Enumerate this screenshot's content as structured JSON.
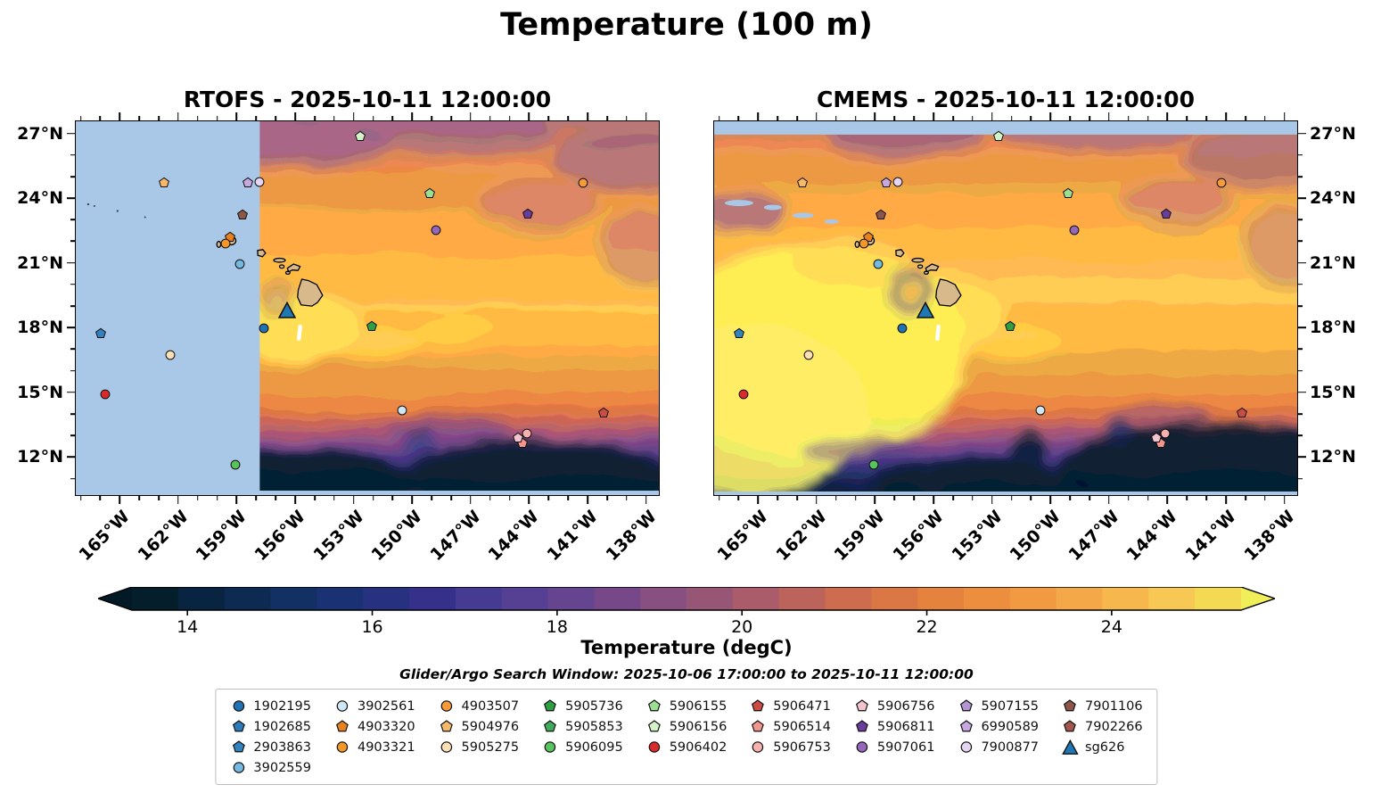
{
  "chart_data": {
    "type": "heatmap",
    "title": "Temperature (100 m)",
    "variable": "Temperature",
    "depth": "100 m",
    "units": "degC",
    "panels": [
      {
        "model": "RTOFS",
        "title": "RTOFS - 2025-10-11 12:00:00",
        "valid_time": "2025-10-11 12:00:00",
        "field_summary": "Warm orange/yellow (22-25 degC) band 15-25N, yellow maximum in lee of Hawaii, sharp transition to dark navy (<14 degC) south of ~14N; light-blue no-data mask west of ~158W",
        "no_data_color": "#a9c7e6"
      },
      {
        "model": "CMEMS",
        "title": "CMEMS - 2025-10-11 12:00:00",
        "valid_time": "2025-10-11 12:00:00",
        "field_summary": "Similar pattern with extensive yellow (>25 degC) pool west and southwest of Hawaii, eddy rings near the islands, dark (<14 degC) band with eddies south of 14N; light-blue no-data strip north of 27N",
        "no_data_color": "#a9c7e6"
      }
    ],
    "axes": {
      "lon_min": -167.3,
      "lon_max": -137.3,
      "lat_min": 10.2,
      "lat_max": 27.6,
      "x_tick_values": [
        -165,
        -162,
        -159,
        -156,
        -153,
        -150,
        -147,
        -144,
        -141,
        -138
      ],
      "x_tick_labels": [
        "165°W",
        "162°W",
        "159°W",
        "156°W",
        "153°W",
        "150°W",
        "147°W",
        "144°W",
        "141°W",
        "138°W"
      ],
      "y_tick_values": [
        27,
        24,
        21,
        18,
        15,
        12
      ],
      "y_tick_labels": [
        "27°N",
        "24°N",
        "21°N",
        "18°N",
        "15°N",
        "12°N"
      ],
      "minor_step": 1
    },
    "colorbar": {
      "label": "Temperature (degC)",
      "ticks": [
        14,
        16,
        18,
        20,
        22,
        24
      ],
      "vmin": 13.4,
      "vmax": 25.4,
      "under_color": "#031a26",
      "over_color": "#f0ee59",
      "colors": [
        "#051e2c",
        "#082440",
        "#0d2a52",
        "#123063",
        "#1a3273",
        "#263280",
        "#35308a",
        "#453b92",
        "#554093",
        "#654490",
        "#76488a",
        "#875081",
        "#985676",
        "#aa5c6a",
        "#bc635c",
        "#cd6c4e",
        "#db7744",
        "#e5823e",
        "#ec8e3e",
        "#f19a42",
        "#f4a847",
        "#f6b74c",
        "#f7c854",
        "#f3da52"
      ]
    },
    "search_window": "Glider/Argo Search Window: 2025-10-06 17:00:00 to 2025-10-11 12:00:00",
    "floats": {
      "1902195": {
        "color": "#2171b5",
        "shape": "circle",
        "lon": -157.6,
        "lat": 17.95
      },
      "1902685": {
        "color": "#2b7bba",
        "shape": "pentagon"
      },
      "2903863": {
        "color": "#3182bd",
        "shape": "pentagon",
        "lon": -166.0,
        "lat": 17.72
      },
      "3902559": {
        "color": "#74b9e0",
        "shape": "circle",
        "lon": -158.85,
        "lat": 20.95
      },
      "3902561": {
        "color": "#cfe6f5",
        "shape": "circle",
        "lon": -150.5,
        "lat": 14.15
      },
      "4903320": {
        "color": "#e8821e",
        "shape": "pentagon",
        "lon": -159.35,
        "lat": 22.2
      },
      "4903321": {
        "color": "#f59727",
        "shape": "circle",
        "lon": -159.6,
        "lat": 21.92
      },
      "4903507": {
        "color": "#f79b38",
        "shape": "circle",
        "lon": -141.2,
        "lat": 24.75
      },
      "5904976": {
        "color": "#f5b96a",
        "shape": "pentagon",
        "lon": -162.75,
        "lat": 24.75
      },
      "5905275": {
        "color": "#fbe0b6",
        "shape": "circle",
        "lon": -162.45,
        "lat": 16.7
      },
      "5905736": {
        "color": "#2f9e44",
        "shape": "pentagon",
        "lon": -152.05,
        "lat": 18.05
      },
      "5905853": {
        "color": "#41ab5d",
        "shape": "pentagon"
      },
      "5906095": {
        "color": "#57c45e",
        "shape": "circle",
        "lon": -159.1,
        "lat": 11.6
      },
      "5906155": {
        "color": "#9ddf92",
        "shape": "pentagon",
        "lon": -149.1,
        "lat": 24.25
      },
      "5906156": {
        "color": "#d3f2c8",
        "shape": "pentagon",
        "lon": -152.65,
        "lat": 26.9
      },
      "5906402": {
        "color": "#d92b2b",
        "shape": "circle",
        "lon": -165.8,
        "lat": 14.9
      },
      "5906471": {
        "color": "#cc4c44",
        "shape": "pentagon",
        "lon": -140.15,
        "lat": 14.0
      },
      "5906514": {
        "color": "#f2958d",
        "shape": "pentagon",
        "lon": -144.3,
        "lat": 12.62
      },
      "5906753": {
        "color": "#f7b2ae",
        "shape": "circle",
        "lon": -144.1,
        "lat": 13.05
      },
      "5906756": {
        "color": "#f3c3cf",
        "shape": "pentagon",
        "lon": -144.55,
        "lat": 12.85
      },
      "5906811": {
        "color": "#6a3d9a",
        "shape": "pentagon",
        "lon": -144.05,
        "lat": 23.3
      },
      "5907061": {
        "color": "#9467bd",
        "shape": "circle",
        "lon": -148.75,
        "lat": 22.55
      },
      "5907155": {
        "color": "#b494d1",
        "shape": "pentagon"
      },
      "6990589": {
        "color": "#c9a8e0",
        "shape": "pentagon",
        "lon": -158.45,
        "lat": 24.75
      },
      "7900877": {
        "color": "#e6d5f2",
        "shape": "circle",
        "lon": -157.85,
        "lat": 24.78
      },
      "7901106": {
        "color": "#8c564b",
        "shape": "pentagon",
        "lon": -158.7,
        "lat": 23.25
      },
      "7902266": {
        "color": "#a2564c",
        "shape": "pentagon"
      },
      "sg626": {
        "color": "#1f77b4",
        "shape": "triangle",
        "lon": -156.45,
        "lat": 18.8
      }
    },
    "legend_columns": [
      [
        "1902195",
        "1902685",
        "2903863",
        "3902559"
      ],
      [
        "3902561",
        "4903320",
        "4903321"
      ],
      [
        "4903507",
        "5904976",
        "5905275"
      ],
      [
        "5905736",
        "5905853",
        "5906095"
      ],
      [
        "5906155",
        "5906156",
        "5906402"
      ],
      [
        "5906471",
        "5906514",
        "5906753"
      ],
      [
        "5906756",
        "5906811",
        "5907061"
      ],
      [
        "5907155",
        "6990589",
        "7900877"
      ],
      [
        "7901106",
        "7902266",
        "sg626"
      ]
    ]
  }
}
